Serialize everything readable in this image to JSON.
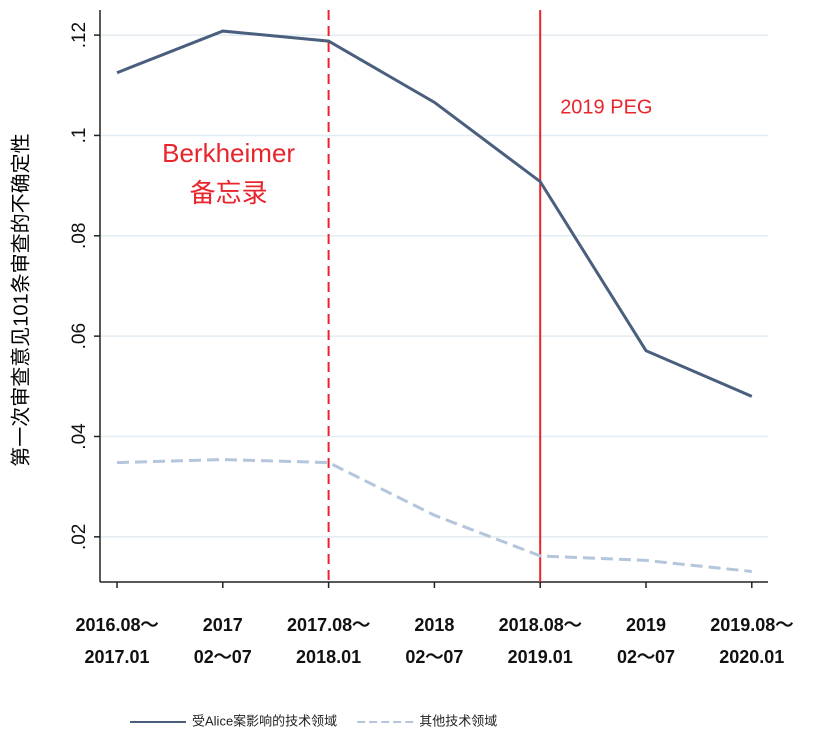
{
  "chart_data": {
    "type": "line",
    "y_label": "第一次审查意见101条审查的不确定性",
    "categories": [
      [
        "2016.08～",
        "2017.01"
      ],
      [
        "2017",
        "02～07"
      ],
      [
        "2017.08～",
        "2018.01"
      ],
      [
        "2018",
        "02～07"
      ],
      [
        "2018.08～",
        "2019.01"
      ],
      [
        "2019",
        "02～07"
      ],
      [
        "2019.08～",
        "2020.01"
      ]
    ],
    "series": [
      {
        "name": "受Alice案影响的技术领域",
        "color": "#4a5f7e",
        "dash": false,
        "values": [
          0.1125,
          0.1208,
          0.1188,
          0.1066,
          0.0908,
          0.0571,
          0.048
        ]
      },
      {
        "name": "其他技术领域",
        "color": "#b4c6dc",
        "dash": true,
        "values": [
          0.0348,
          0.0354,
          0.0348,
          0.0243,
          0.0162,
          0.0153,
          0.0131
        ]
      }
    ],
    "ylim": [
      0.011,
      0.125
    ],
    "yticks": [
      {
        "value": 0.02,
        "label": ".02"
      },
      {
        "value": 0.04,
        "label": ".04"
      },
      {
        "value": 0.06,
        "label": ".06"
      },
      {
        "value": 0.08,
        "label": ".08"
      },
      {
        "value": 0.1,
        "label": ".1"
      },
      {
        "value": 0.12,
        "label": ".12"
      }
    ],
    "grid": true,
    "events": [
      {
        "label": [
          "Berkheimer",
          "备忘录"
        ],
        "at_category": 2,
        "dashed": true,
        "color": "#e8242c"
      },
      {
        "label": [
          "2019 PEG"
        ],
        "at_category": 4,
        "dashed": false,
        "color": "#e8242c"
      }
    ]
  }
}
